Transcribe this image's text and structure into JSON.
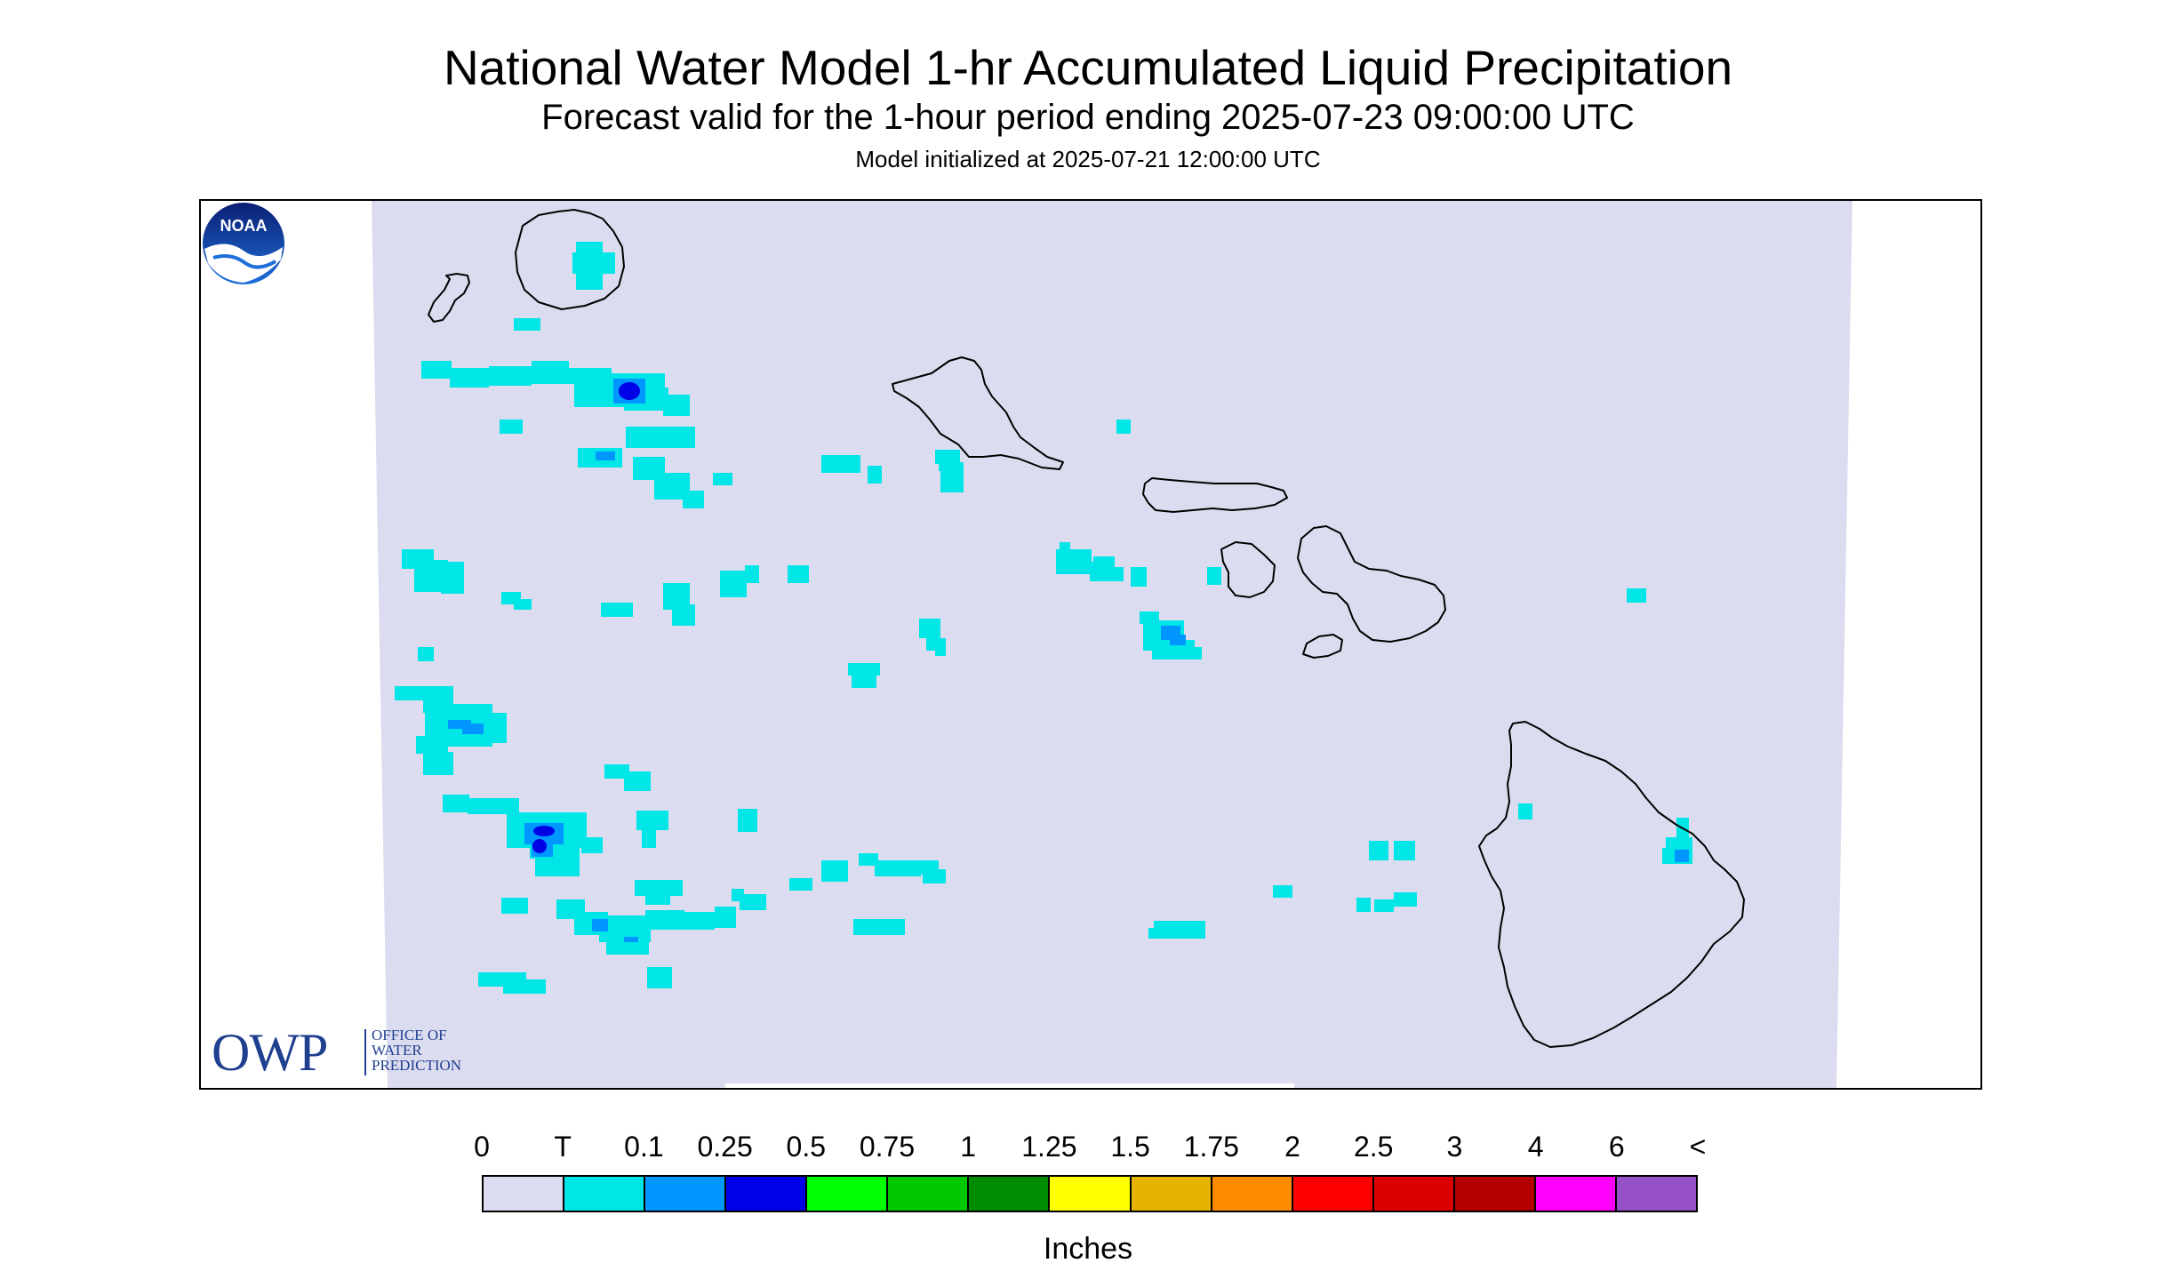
{
  "title": "National Water Model 1-hr Accumulated Liquid Precipitation",
  "subtitle": "Forecast valid for the 1-hour period ending 2025-07-23 09:00:00 UTC",
  "init_line": "Model initialized at 2025-07-21 12:00:00 UTC",
  "logos": {
    "owp_big": "OWP",
    "owp_lines": [
      "OFFICE OF",
      "WATER",
      "PREDICTION"
    ],
    "noaa_text": "NOAA"
  },
  "legend": {
    "labels": [
      "0",
      "T",
      "0.1",
      "0.25",
      "0.5",
      "0.75",
      "1",
      "1.25",
      "1.5",
      "1.75",
      "2",
      "2.5",
      "3",
      "4",
      "6",
      "<"
    ],
    "colors": [
      "#dcdcf0",
      "#00e6e6",
      "#0096ff",
      "#0000e6",
      "#00ff00",
      "#00c800",
      "#008c00",
      "#ffff00",
      "#e6b400",
      "#ff8c00",
      "#ff0000",
      "#dc0000",
      "#b40000",
      "#ff00ff",
      "#9650c8"
    ],
    "units": "Inches"
  },
  "map_colors": {
    "domain": "#dcdcf0",
    "coast": "#000000",
    "trace": "#00e6e6",
    "light_blue": "#0096ff",
    "blue": "#0000e6"
  }
}
